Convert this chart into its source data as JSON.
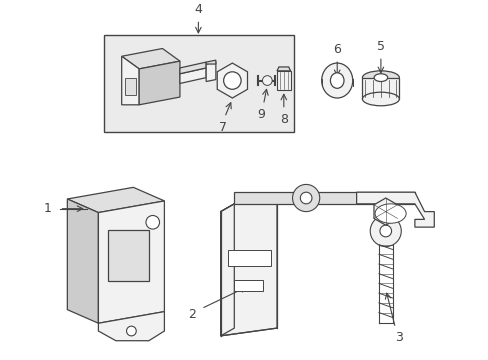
{
  "background_color": "#ffffff",
  "fig_width": 4.89,
  "fig_height": 3.6,
  "dpi": 100,
  "line_color": "#444444",
  "fill_light": "#f2f2f2",
  "fill_mid": "#e0e0e0",
  "fill_dark": "#cccccc",
  "label_color": "#111111",
  "box_bg": "#ebebeb"
}
